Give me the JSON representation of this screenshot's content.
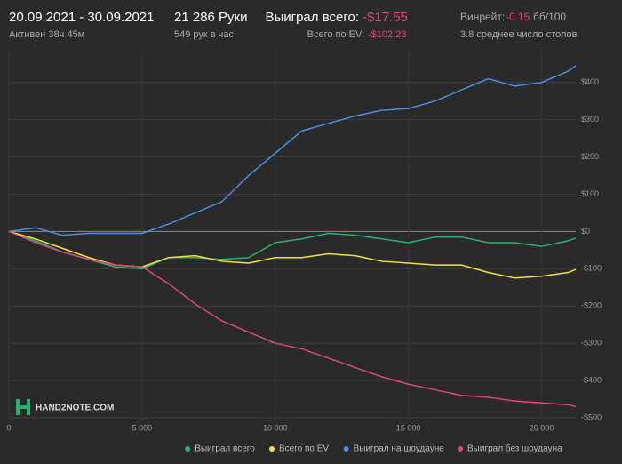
{
  "header": {
    "dates": "20.09.2021 - 30.09.2021",
    "active": "Активен 38ч 45м",
    "hands": "21 286 Руки",
    "rate": "549 рук в час",
    "won_label": "Выиграл всего:",
    "won_value": "-$17.55",
    "ev_label": "Всего по EV:",
    "ev_value": "-$102.23",
    "winrate_label": "Винрейт:",
    "winrate_value": "-0.15",
    "winrate_unit": "бб/100",
    "tables": "3.8 среднее число столов",
    "logo": "HAND2NOTE.COM"
  },
  "chart_data": {
    "type": "line",
    "x": [
      0,
      1000,
      2000,
      3000,
      4000,
      5000,
      6000,
      7000,
      8000,
      9000,
      10000,
      11000,
      12000,
      13000,
      14000,
      15000,
      16000,
      17000,
      18000,
      19000,
      20000,
      21000,
      21286
    ],
    "series": [
      {
        "name": "Выиграл всего",
        "color": "#27b36e",
        "values": [
          0,
          -25,
          -55,
          -75,
          -95,
          -100,
          -70,
          -70,
          -75,
          -70,
          -30,
          -20,
          -5,
          -10,
          -20,
          -30,
          -15,
          -15,
          -30,
          -30,
          -40,
          -25,
          -18
        ]
      },
      {
        "name": "Всего по EV",
        "color": "#f2e33a",
        "values": [
          0,
          -20,
          -45,
          -70,
          -90,
          -95,
          -70,
          -65,
          -80,
          -85,
          -70,
          -70,
          -60,
          -65,
          -80,
          -85,
          -90,
          -90,
          -110,
          -125,
          -120,
          -110,
          -102
        ]
      },
      {
        "name": "Выиграл на шоудауне",
        "color": "#4a8fe0",
        "values": [
          0,
          10,
          -10,
          -5,
          -5,
          -5,
          20,
          50,
          80,
          150,
          210,
          270,
          290,
          310,
          325,
          330,
          350,
          380,
          410,
          390,
          400,
          430,
          445
        ]
      },
      {
        "name": "Выиграл без шоудауна",
        "color": "#e0457b",
        "values": [
          0,
          -30,
          -55,
          -75,
          -90,
          -95,
          -140,
          -195,
          -240,
          -270,
          -300,
          -315,
          -340,
          -365,
          -390,
          -410,
          -425,
          -440,
          -445,
          -455,
          -460,
          -465,
          -470
        ]
      }
    ],
    "xlim": [
      0,
      21286
    ],
    "ylim": [
      -500,
      490
    ],
    "xticks": [
      0,
      {
        "value": 5000,
        "label": "5 000"
      },
      {
        "value": 10000,
        "label": "10 000"
      },
      {
        "value": 15000,
        "label": "15 000"
      },
      {
        "value": 20000,
        "label": "20 000"
      }
    ],
    "yticks": [
      {
        "value": 400,
        "label": "$400"
      },
      {
        "value": 300,
        "label": "$300"
      },
      {
        "value": 200,
        "label": "$200"
      },
      {
        "value": 100,
        "label": "$100"
      },
      {
        "value": 0,
        "label": "$0"
      },
      {
        "value": -100,
        "label": "-$100"
      },
      {
        "value": -200,
        "label": "-$200"
      },
      {
        "value": -300,
        "label": "-$300"
      },
      {
        "value": -400,
        "label": "-$400"
      },
      {
        "value": -500,
        "label": "-$500"
      }
    ],
    "grid": true
  }
}
